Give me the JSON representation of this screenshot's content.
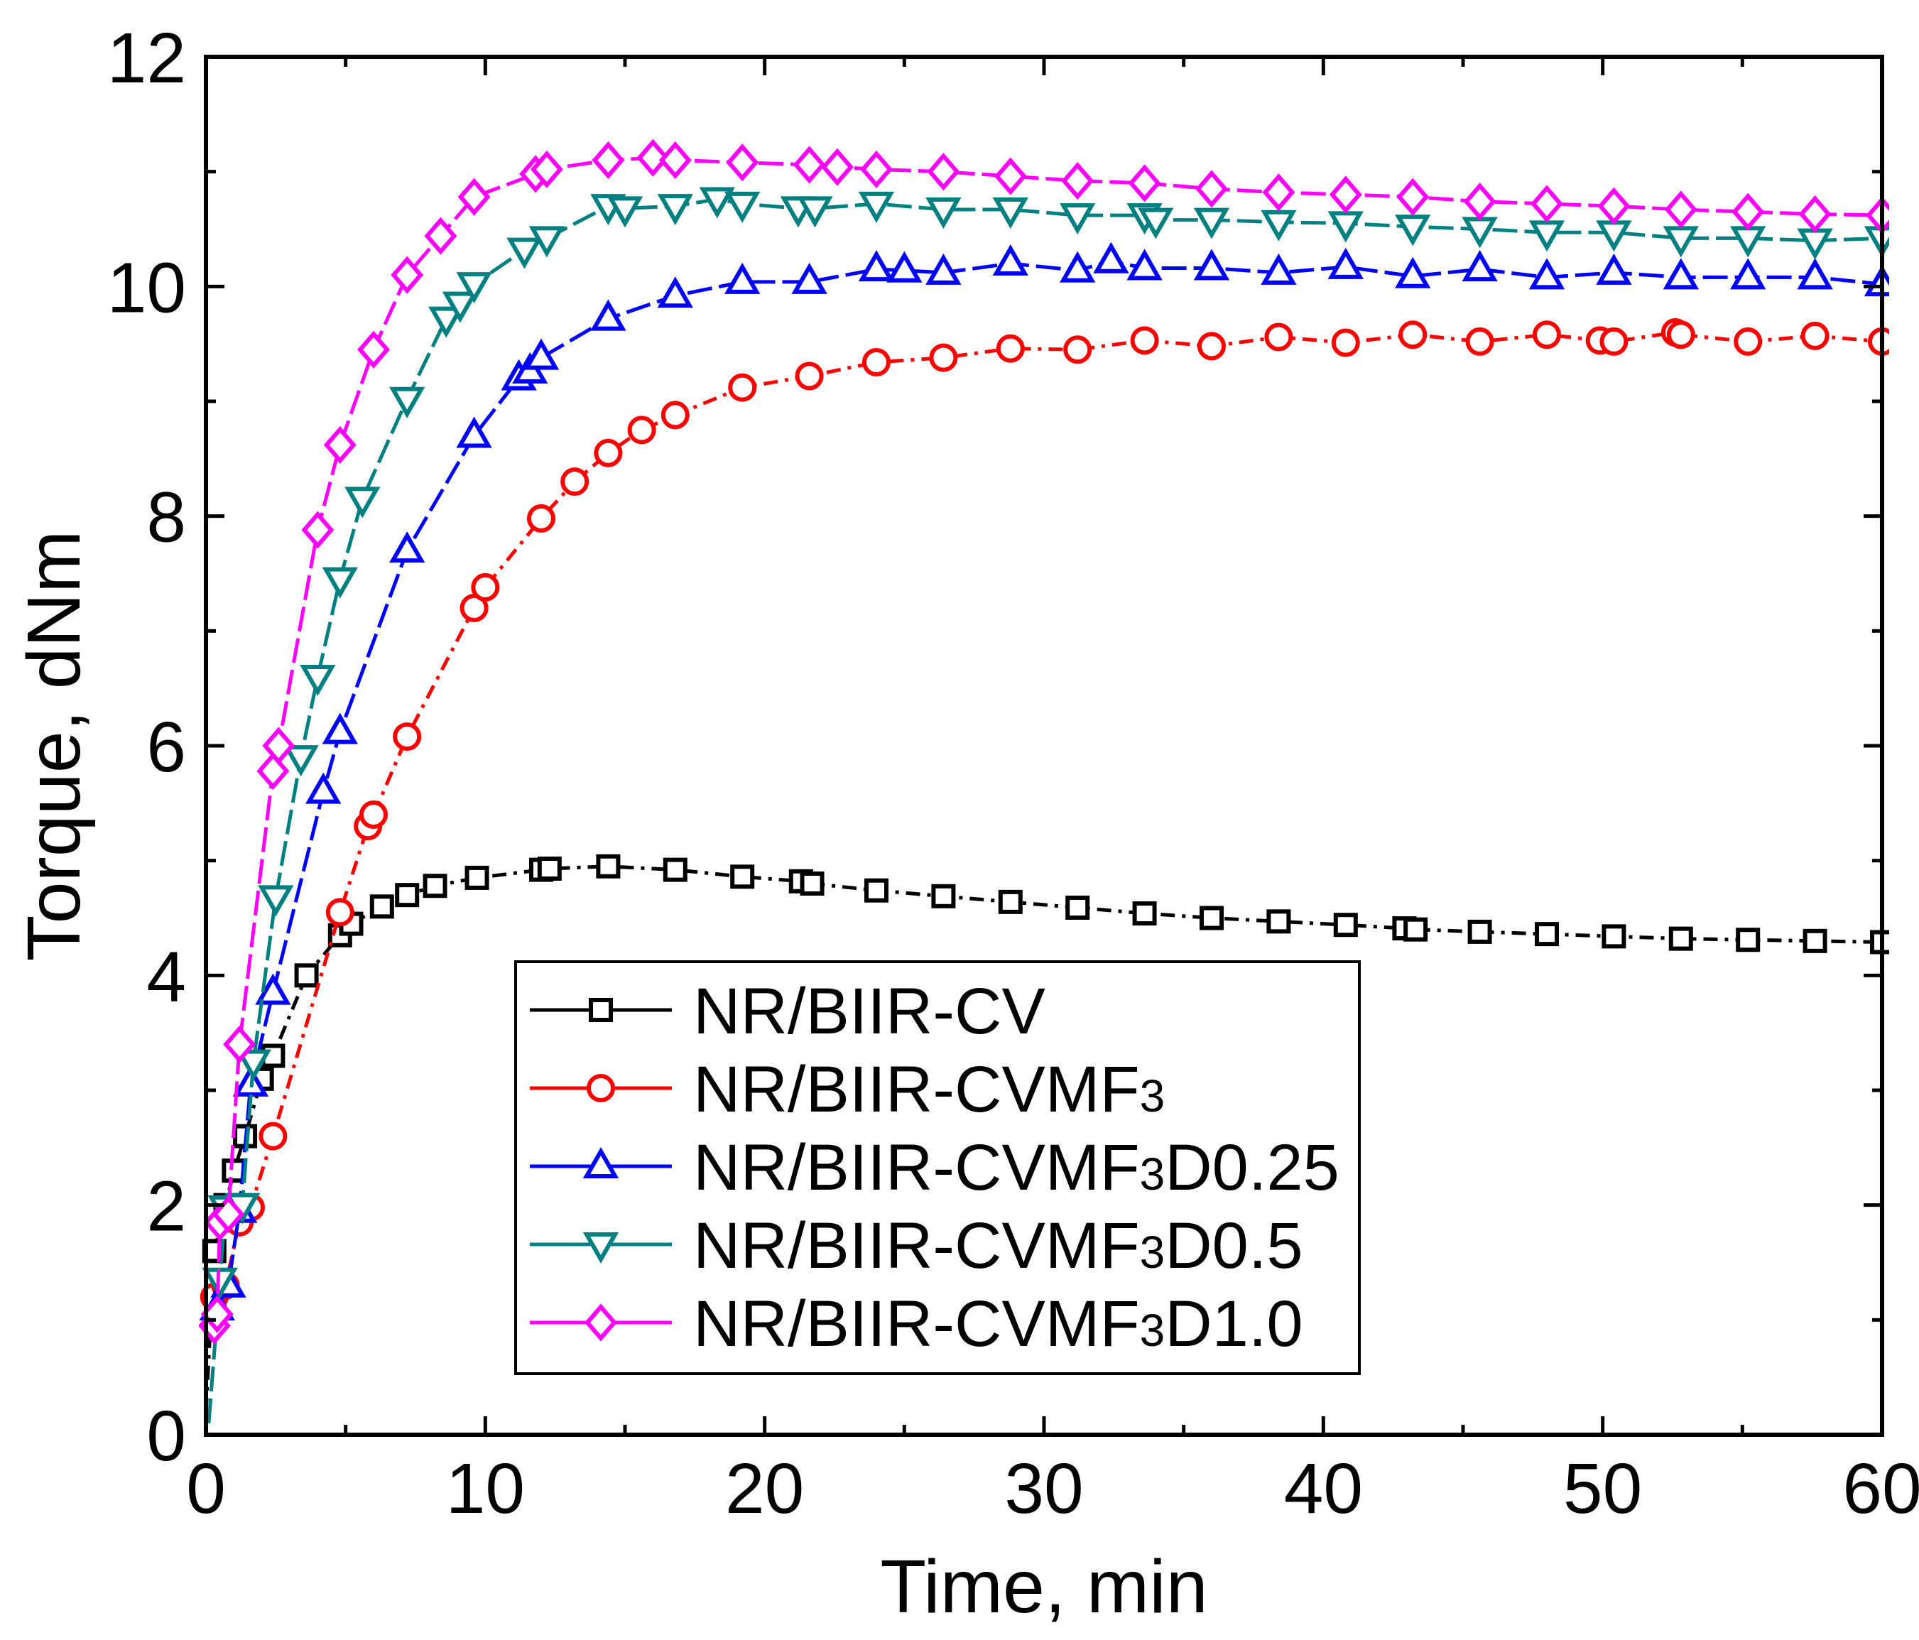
{
  "chart_data": {
    "type": "line",
    "xlabel": "Time, min",
    "ylabel": "Torque, dNm",
    "xlim": [
      0,
      60
    ],
    "ylim": [
      0,
      12
    ],
    "x_ticks": [
      "0",
      "10",
      "20",
      "30",
      "40",
      "50",
      "60"
    ],
    "y_ticks": [
      "0",
      "2",
      "4",
      "6",
      "8",
      "10",
      "12"
    ],
    "grid": false,
    "legend_position": "lower-center",
    "series": [
      {
        "name": "NR/BIIR-CV",
        "legend": {
          "main": "NR/BIIR-CV",
          "sub": "",
          "tail": ""
        },
        "color": "#000000",
        "marker": "square",
        "dash": "20,10,5,10",
        "points": [
          [
            0,
            0.2
          ],
          [
            0.3,
            1.6
          ],
          [
            0.7,
            2.0
          ],
          [
            1.0,
            2.3
          ],
          [
            1.4,
            2.6
          ],
          [
            2.0,
            3.1
          ],
          [
            2.4,
            3.3
          ],
          [
            3.6,
            4.0
          ],
          [
            4.8,
            4.35
          ],
          [
            5.2,
            4.45
          ],
          [
            6.3,
            4.6
          ],
          [
            7.2,
            4.7
          ],
          [
            8.2,
            4.78
          ],
          [
            9.7,
            4.85
          ],
          [
            12.0,
            4.92
          ],
          [
            12.3,
            4.93
          ],
          [
            14.4,
            4.95
          ],
          [
            16.8,
            4.92
          ],
          [
            19.2,
            4.86
          ],
          [
            21.3,
            4.82
          ],
          [
            21.7,
            4.8
          ],
          [
            24.0,
            4.74
          ],
          [
            26.4,
            4.69
          ],
          [
            28.8,
            4.64
          ],
          [
            31.2,
            4.59
          ],
          [
            33.6,
            4.54
          ],
          [
            36.0,
            4.5
          ],
          [
            38.4,
            4.47
          ],
          [
            40.8,
            4.44
          ],
          [
            42.9,
            4.41
          ],
          [
            43.3,
            4.4
          ],
          [
            45.6,
            4.38
          ],
          [
            48.0,
            4.36
          ],
          [
            50.4,
            4.34
          ],
          [
            52.8,
            4.32
          ],
          [
            55.2,
            4.31
          ],
          [
            57.6,
            4.3
          ],
          [
            60.0,
            4.29
          ]
        ]
      },
      {
        "name": "NR/BIIR-CVMF3",
        "legend": {
          "main": "NR/BIIR-CVMF",
          "sub": "3",
          "tail": ""
        },
        "color": "#ff0000",
        "marker": "circle",
        "dash": "20,10,5,10",
        "points": [
          [
            0.3,
            1.2
          ],
          [
            0.7,
            1.3
          ],
          [
            1.2,
            1.85
          ],
          [
            1.6,
            1.98
          ],
          [
            2.4,
            2.6
          ],
          [
            4.8,
            4.55
          ],
          [
            5.8,
            5.3
          ],
          [
            6.0,
            5.4
          ],
          [
            7.2,
            6.08
          ],
          [
            9.6,
            7.2
          ],
          [
            10.0,
            7.38
          ],
          [
            12.0,
            7.98
          ],
          [
            13.2,
            8.3
          ],
          [
            14.4,
            8.55
          ],
          [
            15.6,
            8.75
          ],
          [
            16.8,
            8.88
          ],
          [
            19.2,
            9.12
          ],
          [
            21.6,
            9.22
          ],
          [
            24.0,
            9.34
          ],
          [
            26.4,
            9.38
          ],
          [
            28.8,
            9.46
          ],
          [
            31.2,
            9.45
          ],
          [
            33.6,
            9.53
          ],
          [
            36.0,
            9.48
          ],
          [
            38.4,
            9.56
          ],
          [
            40.8,
            9.51
          ],
          [
            43.2,
            9.58
          ],
          [
            45.6,
            9.52
          ],
          [
            48.0,
            9.58
          ],
          [
            49.9,
            9.53
          ],
          [
            50.4,
            9.52
          ],
          [
            52.6,
            9.6
          ],
          [
            52.8,
            9.58
          ],
          [
            55.2,
            9.52
          ],
          [
            57.6,
            9.57
          ],
          [
            60.0,
            9.52
          ]
        ]
      },
      {
        "name": "NR/BIIR-CVMF3D0.25",
        "legend": {
          "main": " NR/BIIR-CVMF",
          "sub": "3",
          "tail": "D0.25"
        },
        "color": "#0000ff",
        "marker": "triangle-up",
        "dash": "35,10",
        "points": [
          [
            0.4,
            1.1
          ],
          [
            0.8,
            1.3
          ],
          [
            1.2,
            1.95
          ],
          [
            1.6,
            3.05
          ],
          [
            2.4,
            3.85
          ],
          [
            4.2,
            5.6
          ],
          [
            4.8,
            6.12
          ],
          [
            7.2,
            7.7
          ],
          [
            9.6,
            8.7
          ],
          [
            11.2,
            9.2
          ],
          [
            11.6,
            9.26
          ],
          [
            12.0,
            9.38
          ],
          [
            14.4,
            9.72
          ],
          [
            16.8,
            9.92
          ],
          [
            19.2,
            10.04
          ],
          [
            21.6,
            10.04
          ],
          [
            24.0,
            10.15
          ],
          [
            25.0,
            10.14
          ],
          [
            26.4,
            10.12
          ],
          [
            28.8,
            10.2
          ],
          [
            31.2,
            10.14
          ],
          [
            32.4,
            10.22
          ],
          [
            33.6,
            10.16
          ],
          [
            36.0,
            10.16
          ],
          [
            38.4,
            10.12
          ],
          [
            40.8,
            10.17
          ],
          [
            43.2,
            10.09
          ],
          [
            45.6,
            10.15
          ],
          [
            48.0,
            10.08
          ],
          [
            50.4,
            10.12
          ],
          [
            52.8,
            10.08
          ],
          [
            55.2,
            10.08
          ],
          [
            57.6,
            10.08
          ],
          [
            60.0,
            10.02
          ]
        ]
      },
      {
        "name": "NR/BIIR-CVMF3D0.5",
        "legend": {
          "main": "NR/BIIR-CVMF",
          "sub": "3",
          "tail": "D0.5"
        },
        "color": "#008080",
        "marker": "triangle-down",
        "dash": "35,10",
        "points": [
          [
            0.1,
            0.1
          ],
          [
            0.5,
            1.35
          ],
          [
            0.7,
            1.98
          ],
          [
            1.3,
            2.0
          ],
          [
            1.7,
            3.25
          ],
          [
            2.5,
            4.68
          ],
          [
            3.4,
            5.9
          ],
          [
            4.0,
            6.6
          ],
          [
            4.8,
            7.45
          ],
          [
            5.6,
            8.15
          ],
          [
            7.2,
            9.02
          ],
          [
            8.6,
            9.72
          ],
          [
            9.1,
            9.85
          ],
          [
            9.6,
            10.02
          ],
          [
            11.4,
            10.32
          ],
          [
            12.2,
            10.42
          ],
          [
            14.4,
            10.7
          ],
          [
            15.0,
            10.68
          ],
          [
            16.8,
            10.7
          ],
          [
            18.3,
            10.76
          ],
          [
            19.2,
            10.72
          ],
          [
            21.2,
            10.68
          ],
          [
            21.8,
            10.68
          ],
          [
            24.0,
            10.72
          ],
          [
            26.4,
            10.67
          ],
          [
            28.8,
            10.67
          ],
          [
            31.2,
            10.62
          ],
          [
            33.6,
            10.62
          ],
          [
            34.0,
            10.58
          ],
          [
            36.0,
            10.58
          ],
          [
            38.4,
            10.56
          ],
          [
            40.8,
            10.55
          ],
          [
            43.2,
            10.52
          ],
          [
            45.6,
            10.5
          ],
          [
            48.0,
            10.47
          ],
          [
            50.4,
            10.47
          ],
          [
            52.8,
            10.42
          ],
          [
            55.2,
            10.42
          ],
          [
            57.6,
            10.4
          ],
          [
            60.0,
            10.42
          ]
        ]
      },
      {
        "name": "NR/BIIR-CVMF3D1.0",
        "legend": {
          "main": "NR/BIIR-CVMF",
          "sub": "3",
          "tail": "D1.0"
        },
        "color": "#ff00ff",
        "marker": "diamond",
        "dash": "35,10",
        "points": [
          [
            0.3,
            0.95
          ],
          [
            0.4,
            1.05
          ],
          [
            0.5,
            1.85
          ],
          [
            0.8,
            1.92
          ],
          [
            1.2,
            3.4
          ],
          [
            2.4,
            5.78
          ],
          [
            2.6,
            6.0
          ],
          [
            4.0,
            7.88
          ],
          [
            4.8,
            8.62
          ],
          [
            6.0,
            9.45
          ],
          [
            7.2,
            10.1
          ],
          [
            8.4,
            10.44
          ],
          [
            9.6,
            10.78
          ],
          [
            11.8,
            10.98
          ],
          [
            12.2,
            11.02
          ],
          [
            14.4,
            11.1
          ],
          [
            16.0,
            11.12
          ],
          [
            16.8,
            11.1
          ],
          [
            19.2,
            11.08
          ],
          [
            21.6,
            11.06
          ],
          [
            22.6,
            11.04
          ],
          [
            24.0,
            11.02
          ],
          [
            26.4,
            11.0
          ],
          [
            28.8,
            10.96
          ],
          [
            31.2,
            10.92
          ],
          [
            33.6,
            10.9
          ],
          [
            36.0,
            10.85
          ],
          [
            38.4,
            10.82
          ],
          [
            40.8,
            10.8
          ],
          [
            43.2,
            10.78
          ],
          [
            45.6,
            10.74
          ],
          [
            48.0,
            10.72
          ],
          [
            50.4,
            10.7
          ],
          [
            52.8,
            10.67
          ],
          [
            55.2,
            10.65
          ],
          [
            57.6,
            10.63
          ],
          [
            60.0,
            10.62
          ]
        ]
      }
    ]
  }
}
